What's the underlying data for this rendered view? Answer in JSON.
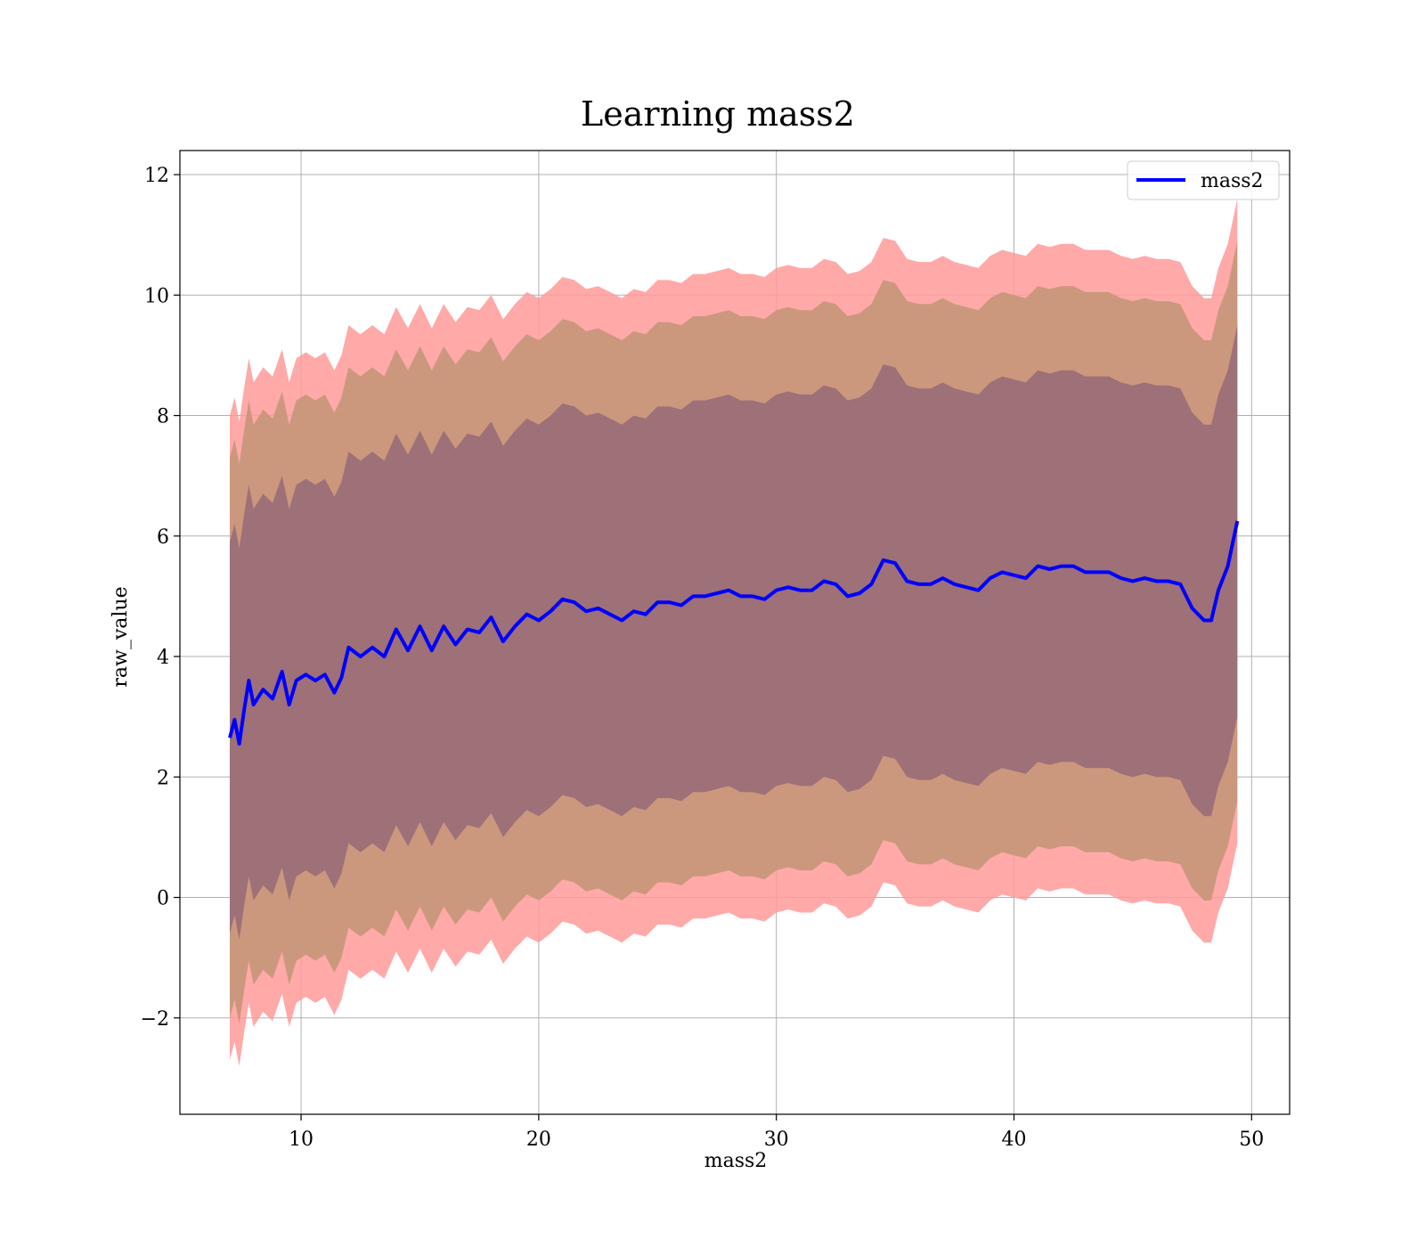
{
  "chart_data": {
    "type": "line",
    "title": "Learning mass2",
    "xlabel": "mass2",
    "ylabel": "raw_value",
    "xlim": [
      4.9,
      51.6
    ],
    "ylim": [
      -3.6,
      12.4
    ],
    "xticks": [
      10,
      20,
      30,
      40,
      50
    ],
    "yticks": [
      -2,
      0,
      2,
      4,
      6,
      8,
      10,
      12
    ],
    "xtick_labels": [
      "10",
      "20",
      "30",
      "40",
      "50"
    ],
    "ytick_labels": [
      "−2",
      "0",
      "2",
      "4",
      "6",
      "8",
      "10",
      "12"
    ],
    "grid": true,
    "legend": {
      "placement": "upper right",
      "entries": [
        "mass2"
      ]
    },
    "line_color": "#0000ff",
    "band_colors": {
      "outer": "#ff9a9a",
      "middle": "#c8977a",
      "inner": "#9c6e78"
    },
    "x": [
      7.0,
      7.2,
      7.4,
      7.6,
      7.8,
      8.0,
      8.4,
      8.8,
      9.2,
      9.5,
      9.8,
      10.2,
      10.6,
      11.0,
      11.4,
      11.7,
      12.0,
      12.5,
      13.0,
      13.5,
      14.0,
      14.5,
      15.0,
      15.5,
      16.0,
      16.5,
      17.0,
      17.5,
      18.0,
      18.5,
      19.0,
      19.5,
      20.0,
      20.5,
      21.0,
      21.5,
      22.0,
      22.5,
      23.0,
      23.5,
      24.0,
      24.5,
      25.0,
      25.5,
      26.0,
      26.5,
      27.0,
      27.5,
      28.0,
      28.5,
      29.0,
      29.5,
      30.0,
      30.5,
      31.0,
      31.5,
      32.0,
      32.5,
      33.0,
      33.5,
      34.0,
      34.5,
      35.0,
      35.5,
      36.0,
      36.5,
      37.0,
      37.5,
      38.0,
      38.5,
      39.0,
      39.5,
      40.0,
      40.5,
      41.0,
      41.5,
      42.0,
      42.5,
      43.0,
      43.5,
      44.0,
      44.5,
      45.0,
      45.5,
      46.0,
      46.5,
      47.0,
      47.5,
      48.0,
      48.3,
      48.6,
      49.0,
      49.4
    ],
    "series": [
      {
        "name": "mass2",
        "values": [
          2.65,
          2.95,
          2.55,
          3.1,
          3.6,
          3.2,
          3.45,
          3.3,
          3.75,
          3.2,
          3.6,
          3.7,
          3.6,
          3.7,
          3.4,
          3.65,
          4.15,
          4.0,
          4.15,
          4.0,
          4.45,
          4.1,
          4.5,
          4.1,
          4.5,
          4.2,
          4.45,
          4.4,
          4.65,
          4.25,
          4.5,
          4.7,
          4.6,
          4.75,
          4.95,
          4.9,
          4.75,
          4.8,
          4.7,
          4.6,
          4.75,
          4.7,
          4.9,
          4.9,
          4.85,
          5.0,
          5.0,
          5.05,
          5.1,
          5.0,
          5.0,
          4.95,
          5.1,
          5.15,
          5.1,
          5.1,
          5.25,
          5.2,
          5.0,
          5.05,
          5.2,
          5.6,
          5.55,
          5.25,
          5.2,
          5.2,
          5.3,
          5.2,
          5.15,
          5.1,
          5.3,
          5.4,
          5.35,
          5.3,
          5.5,
          5.45,
          5.5,
          5.5,
          5.4,
          5.4,
          5.4,
          5.3,
          5.25,
          5.3,
          5.25,
          5.25,
          5.2,
          4.8,
          4.6,
          4.6,
          5.1,
          5.5,
          6.25
        ]
      }
    ]
  }
}
